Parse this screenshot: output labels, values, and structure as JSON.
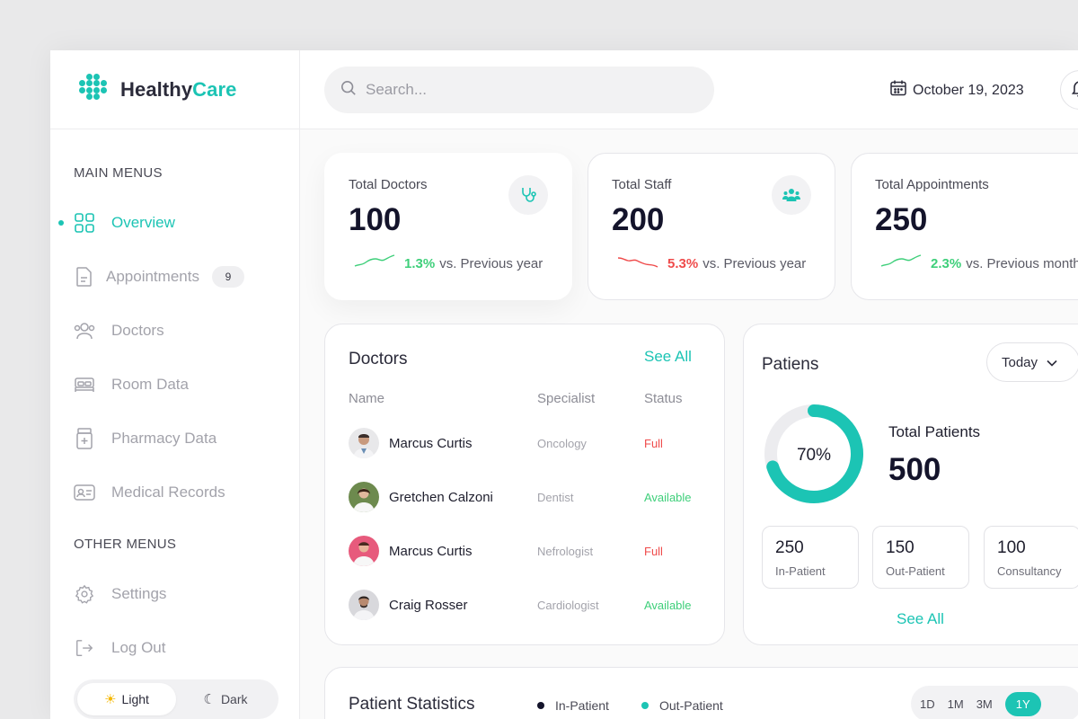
{
  "brand": {
    "name_part1": "Healthy",
    "name_part2": "Care"
  },
  "colors": {
    "accent": "#1cc4b4",
    "up": "#3ecf7a",
    "down": "#ef4b4b",
    "navy": "#14142b"
  },
  "sidebar": {
    "main_title": "MAIN MENUS",
    "items": [
      {
        "label": "Overview",
        "icon": "grid-icon",
        "active": true
      },
      {
        "label": "Appointments",
        "icon": "document-icon",
        "badge": "9"
      },
      {
        "label": "Doctors",
        "icon": "users-icon"
      },
      {
        "label": "Room Data",
        "icon": "bed-icon"
      },
      {
        "label": "Pharmacy Data",
        "icon": "pill-bottle-icon"
      },
      {
        "label": "Medical Records",
        "icon": "id-card-icon"
      }
    ],
    "other_title": "OTHER MENUS",
    "other_items": [
      {
        "label": "Settings",
        "icon": "gear-icon"
      },
      {
        "label": "Log Out",
        "icon": "logout-icon"
      }
    ],
    "theme": {
      "light": "Light",
      "dark": "Dark",
      "selected": "Light"
    }
  },
  "topbar": {
    "search_placeholder": "Search...",
    "date": "October 19, 2023"
  },
  "stats": [
    {
      "label": "Total Doctors",
      "value": "100",
      "pct": "1.3%",
      "suffix": "vs. Previous year",
      "trend": "up",
      "icon": "stethoscope-icon"
    },
    {
      "label": "Total Staff",
      "value": "200",
      "pct": "5.3%",
      "suffix": "vs. Previous year",
      "trend": "down",
      "icon": "team-icon"
    },
    {
      "label": "Total Appointments",
      "value": "250",
      "pct": "2.3%",
      "suffix": "vs. Previous month",
      "trend": "up",
      "icon": "calendar-icon"
    }
  ],
  "doctors": {
    "title": "Doctors",
    "see_all": "See All",
    "columns": [
      "Name",
      "Specialist",
      "Status"
    ],
    "rows": [
      {
        "name": "Marcus Curtis",
        "specialist": "Oncology",
        "status": "Full"
      },
      {
        "name": "Gretchen Calzoni",
        "specialist": "Dentist",
        "status": "Available"
      },
      {
        "name": "Marcus Curtis",
        "specialist": "Nefrologist",
        "status": "Full"
      },
      {
        "name": "Craig Rosser",
        "specialist": "Cardiologist",
        "status": "Available"
      }
    ]
  },
  "patients": {
    "title": "Patiens",
    "filter": "Today",
    "percent_label": "70%",
    "percent_value": 0.7,
    "total_label": "Total Patients",
    "total_value": "500",
    "boxes": [
      {
        "value": "250",
        "label": "In-Patient"
      },
      {
        "value": "150",
        "label": "Out-Patient"
      },
      {
        "value": "100",
        "label": "Consultancy"
      }
    ],
    "see_all": "See All"
  },
  "patient_statistics": {
    "title": "Patient Statistics",
    "legend": [
      {
        "label": "In-Patient",
        "color": "#14142b"
      },
      {
        "label": "Out-Patient",
        "color": "#1cc4b4"
      }
    ],
    "ranges": [
      "1D",
      "1M",
      "3M",
      "1Y"
    ],
    "selected_range": "1Y"
  }
}
